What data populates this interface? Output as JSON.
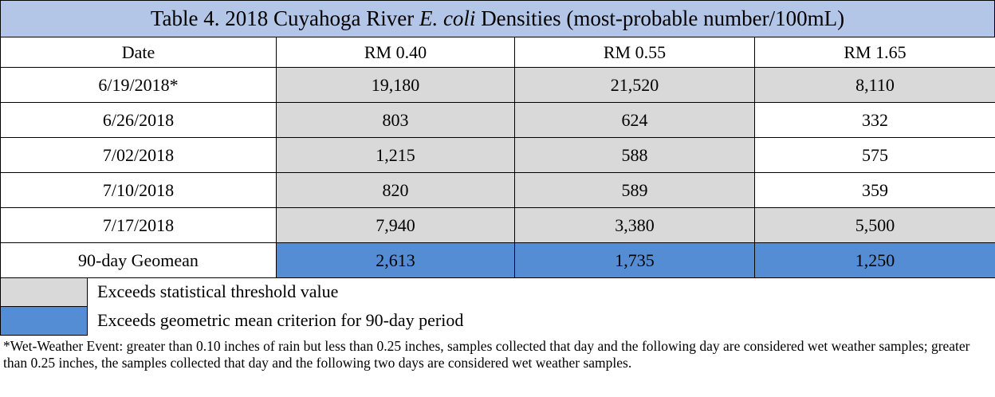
{
  "table": {
    "title": [
      "Table 4. 2018 Cuyahoga River ",
      "E. coli",
      " Densities (most-probable number/100mL)"
    ],
    "title_color": "#b4c6e7",
    "header": [
      "Date",
      "RM 0.40",
      "RM 0.55",
      "RM 1.65"
    ],
    "rows": [
      [
        "6/19/2018*",
        "19,180",
        "21,520",
        "8,110"
      ],
      [
        "6/26/2018",
        "803",
        "624",
        "332"
      ],
      [
        "7/02/2018",
        "1,215",
        "588",
        "575"
      ],
      [
        "7/10/2018",
        "820",
        "589",
        "359"
      ],
      [
        "7/17/2018",
        "7,940",
        "3,380",
        "5,500"
      ],
      [
        "90-day Geomean",
        "2,613",
        "1,735",
        "1,250"
      ]
    ],
    "fills": [
      [
        null,
        "#d9d9d9",
        "#d9d9d9",
        "#d9d9d9"
      ],
      [
        null,
        "#d9d9d9",
        "#d9d9d9",
        null
      ],
      [
        null,
        "#d9d9d9",
        "#d9d9d9",
        null
      ],
      [
        null,
        "#d9d9d9",
        "#d9d9d9",
        null
      ],
      [
        null,
        "#d9d9d9",
        "#d9d9d9",
        "#d9d9d9"
      ],
      [
        null,
        "#548dd4",
        "#548dd4",
        "#548dd4"
      ]
    ]
  },
  "legend": [
    {
      "color": "#d9d9d9",
      "label": "Exceeds statistical threshold value"
    },
    {
      "color": "#548dd4",
      "label": "Exceeds geometric mean criterion for 90-day period"
    }
  ],
  "footnote": "*Wet-Weather Event: greater than 0.10 inches of rain but less than 0.25 inches, samples collected that day and the following day are considered wet weather samples; greater than 0.25 inches, the samples collected that day and the following two days are considered wet weather samples."
}
